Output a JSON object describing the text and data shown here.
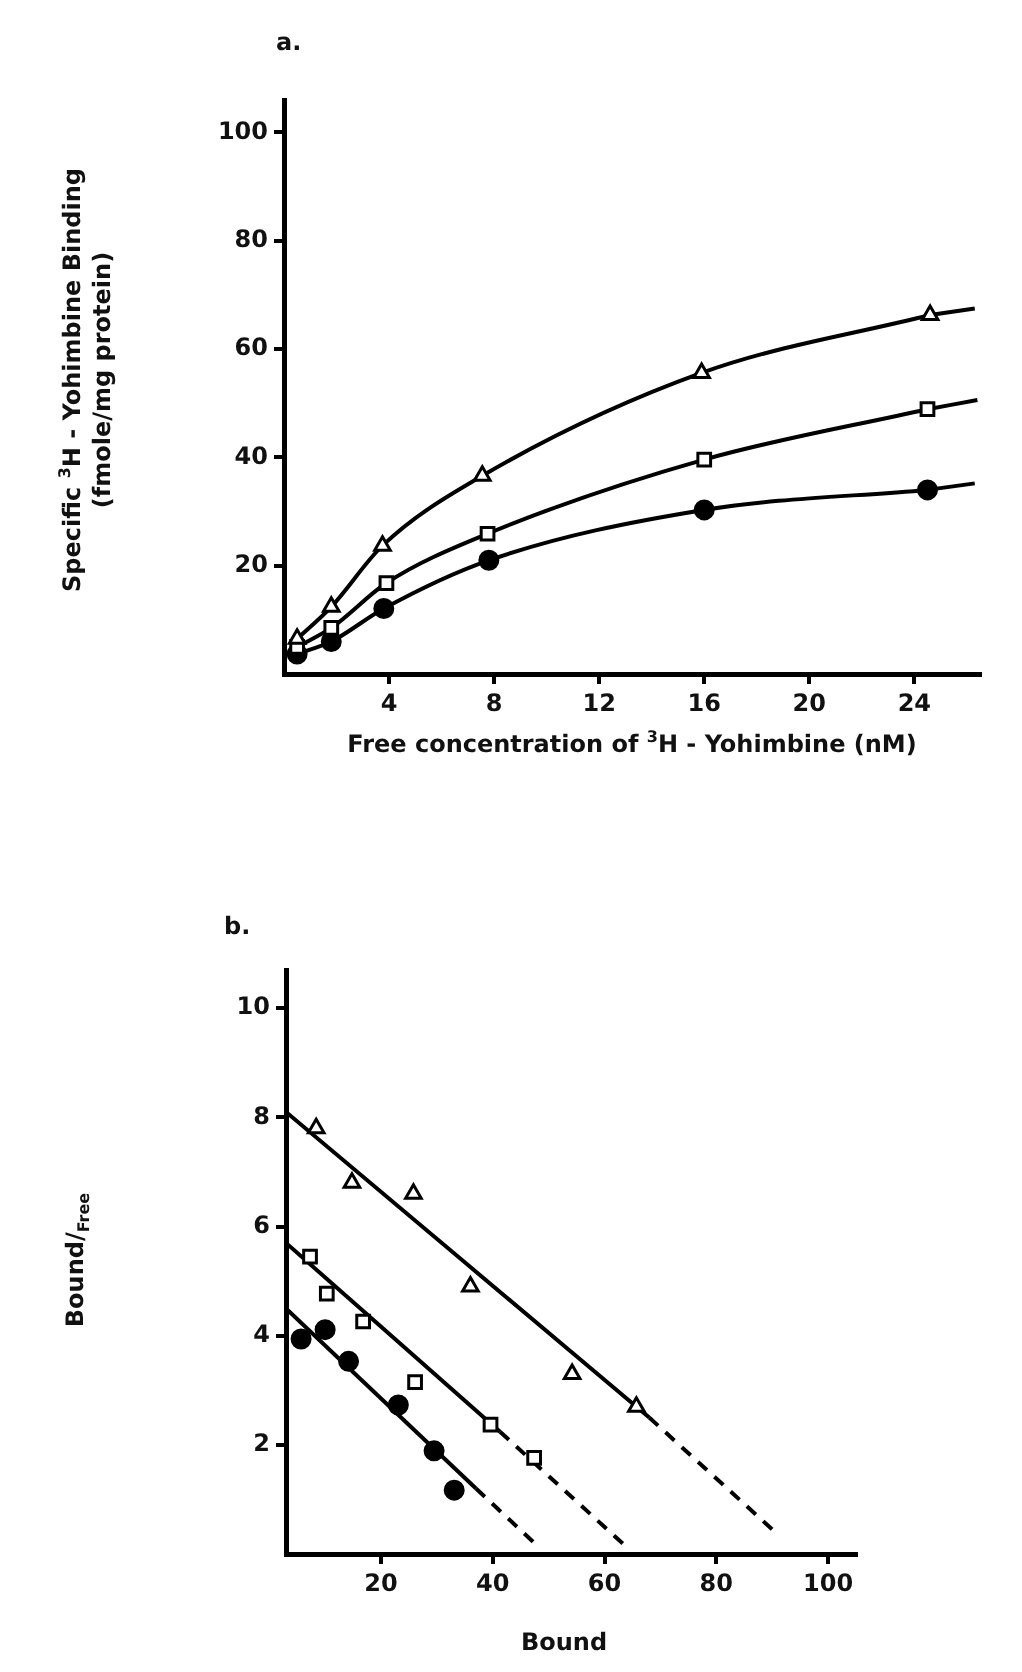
{
  "chart_data": [
    {
      "type": "line",
      "title": "a.",
      "xlabel": "Free concentration of $^{3}$H - Yohimbine (nM)",
      "ylabel": "Specific $^{3}$H - Yohimbine Binding\n(fmole/mg protein)",
      "xlim": [
        0,
        26.5
      ],
      "xticks": [
        4,
        8,
        12,
        16,
        20,
        24
      ],
      "ylim": [
        0,
        106
      ],
      "yticks": [
        20,
        40,
        60,
        80,
        100
      ],
      "grid": false,
      "legend": false,
      "series": [
        {
          "color": "#000000",
          "marker": "triangle",
          "x": [
            0.5,
            1.8,
            3.75,
            7.55,
            15.9,
            24.6
          ],
          "values": [
            6.5,
            12.4,
            23.7,
            36.6,
            55.6,
            66.3
          ]
        },
        {
          "color": "#000000",
          "marker": "square",
          "x": [
            0.5,
            1.8,
            3.9,
            7.75,
            16,
            24.5
          ],
          "values": [
            5,
            8.5,
            16.8,
            25.9,
            39.6,
            48.9
          ]
        },
        {
          "color": "#000000",
          "marker": "circle",
          "x": [
            0.5,
            1.8,
            3.8,
            7.8,
            16,
            24.5
          ],
          "values": [
            3.7,
            6,
            12.1,
            21,
            30.3,
            34
          ]
        },
        {
          "color": "#000000",
          "marker": "none",
          "x": [
            24.6,
            26.3
          ],
          "values": [
            66.3,
            67.5
          ]
        },
        {
          "color": "#000000",
          "marker": "none",
          "x": [
            24.5,
            26.4
          ],
          "values": [
            48.9,
            50.6
          ]
        },
        {
          "color": "#000000",
          "marker": "none",
          "x": [
            24.5,
            26.3
          ],
          "values": [
            34,
            35.2
          ]
        }
      ]
    },
    {
      "type": "scatter",
      "title": "b.",
      "xlabel": "Bound",
      "ylabel": "Bound/$_{Free}$",
      "xlim": [
        3,
        105
      ],
      "xticks": [
        20,
        40,
        60,
        80,
        100
      ],
      "ylim": [
        0,
        10.7
      ],
      "yticks": [
        2,
        4,
        6,
        8,
        10
      ],
      "grid": false,
      "legend": false,
      "series": [
        {
          "color": "#000000",
          "marker": "triangle",
          "x": [
            8.4,
            14.8,
            25.8,
            36,
            54.2,
            65.7
          ],
          "values": [
            7.8,
            6.8,
            6.6,
            4.9,
            3.3,
            2.7
          ]
        },
        {
          "color": "#000000",
          "marker": "square",
          "x": [
            7.3,
            10.3,
            16.8,
            26.1,
            39.6,
            47.4
          ],
          "values": [
            5.45,
            4.77,
            4.26,
            3.15,
            2.37,
            1.76
          ]
        },
        {
          "color": "#000000",
          "marker": "circle",
          "x": [
            5.7,
            10,
            14.2,
            23.1,
            29.5,
            33.1
          ],
          "values": [
            3.94,
            4.11,
            3.53,
            2.73,
            1.89,
            1.17
          ]
        },
        {
          "type": "line",
          "color": "#000000",
          "marker": "none",
          "line_style": "solid",
          "x": [
            3,
            68
          ],
          "values": [
            8.1,
            2.5
          ]
        },
        {
          "type": "line",
          "color": "#000000",
          "marker": "none",
          "line_style": "dashed",
          "x": [
            68,
            91.1
          ],
          "values": [
            2.5,
            0.35
          ]
        },
        {
          "type": "line",
          "color": "#000000",
          "marker": "none",
          "line_style": "solid",
          "x": [
            3,
            41.3
          ],
          "values": [
            5.7,
            2.24
          ]
        },
        {
          "type": "line",
          "color": "#000000",
          "marker": "none",
          "line_style": "dashed",
          "x": [
            41.3,
            63.5
          ],
          "values": [
            2.24,
            0.17
          ]
        },
        {
          "type": "line",
          "color": "#000000",
          "marker": "none",
          "line_style": "solid",
          "x": [
            3,
            37
          ],
          "values": [
            4.5,
            1.2
          ]
        },
        {
          "type": "line",
          "color": "#000000",
          "marker": "none",
          "line_style": "dashed",
          "x": [
            37,
            48.2
          ],
          "values": [
            1.2,
            0.13
          ]
        }
      ]
    }
  ]
}
